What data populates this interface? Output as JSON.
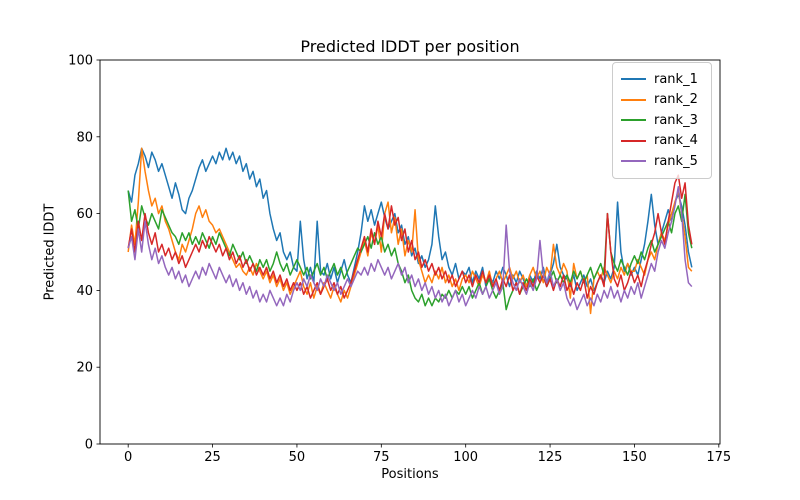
{
  "figure": {
    "background": "#ffffff"
  },
  "chart_data": {
    "type": "line",
    "title": "Predicted lDDT per position",
    "xlabel": "Positions",
    "ylabel": "Predicted lDDT",
    "xlim": [
      -8.35,
      175.35
    ],
    "ylim": [
      0,
      100
    ],
    "xticks": [
      0,
      25,
      50,
      75,
      100,
      125,
      150,
      175
    ],
    "yticks": [
      0,
      20,
      40,
      60,
      80,
      100
    ],
    "grid": false,
    "legend_position": "upper right",
    "x_start": 0,
    "x_step": 1,
    "series": [
      {
        "name": "rank_1",
        "color": "#1f77b4",
        "values": [
          66,
          63,
          70,
          73,
          77,
          75,
          72,
          76,
          74,
          71,
          73,
          70,
          67,
          64,
          68,
          65,
          61,
          60,
          64,
          66,
          69,
          72,
          74,
          71,
          73,
          75,
          73,
          76,
          74,
          77,
          74,
          76,
          73,
          75,
          71,
          73,
          69,
          71,
          67,
          69,
          64,
          66,
          60,
          56,
          53,
          55,
          50,
          48,
          50,
          46,
          45,
          58,
          48,
          43,
          46,
          42,
          58,
          45,
          44,
          47,
          43,
          46,
          42,
          45,
          48,
          44,
          42,
          46,
          50,
          55,
          62,
          58,
          61,
          57,
          60,
          63,
          59,
          56,
          58,
          60,
          55,
          57,
          52,
          54,
          49,
          51,
          47,
          49,
          46,
          48,
          52,
          62,
          54,
          48,
          50,
          46,
          44,
          47,
          43,
          45,
          44,
          46,
          42,
          45,
          43,
          46,
          41,
          44,
          42,
          45,
          43,
          46,
          44,
          41,
          44,
          42,
          45,
          43,
          41,
          44,
          42,
          45,
          43,
          46,
          42,
          44,
          47,
          52,
          46,
          44,
          43,
          41,
          44,
          40,
          42,
          44,
          41,
          43,
          40,
          42,
          44,
          42,
          45,
          43,
          46,
          63,
          50,
          45,
          47,
          44,
          46,
          44,
          48,
          52,
          58,
          65,
          57,
          52,
          55,
          58,
          61,
          58,
          63,
          65,
          62,
          57,
          50,
          46
        ]
      },
      {
        "name": "rank_2",
        "color": "#ff7f0e",
        "values": [
          50,
          57,
          52,
          63,
          77,
          71,
          66,
          62,
          64,
          60,
          62,
          58,
          56,
          53,
          50,
          48,
          52,
          50,
          53,
          56,
          60,
          62,
          59,
          61,
          58,
          57,
          55,
          56,
          54,
          52,
          50,
          48,
          46,
          47,
          45,
          44,
          46,
          44,
          47,
          45,
          43,
          45,
          42,
          44,
          41,
          43,
          40,
          42,
          39,
          41,
          43,
          45,
          41,
          39,
          42,
          38,
          41,
          39,
          42,
          40,
          38,
          41,
          39,
          37,
          40,
          38,
          41,
          44,
          47,
          50,
          53,
          49,
          55,
          52,
          57,
          50,
          60,
          63,
          55,
          59,
          52,
          56,
          49,
          53,
          50,
          61,
          48,
          45,
          42,
          44,
          42,
          45,
          43,
          46,
          42,
          44,
          41,
          43,
          40,
          43,
          44,
          42,
          45,
          43,
          41,
          44,
          42,
          45,
          41,
          43,
          45,
          42,
          44,
          46,
          43,
          45,
          42,
          44,
          41,
          44,
          46,
          43,
          45,
          42,
          46,
          44,
          52,
          46,
          44,
          47,
          45,
          38,
          47,
          43,
          45,
          42,
          44,
          34,
          43,
          45,
          43,
          46,
          44,
          42,
          45,
          43,
          46,
          44,
          47,
          45,
          45,
          48,
          46,
          44,
          48,
          50,
          48,
          52,
          55,
          53,
          57,
          60,
          63,
          66,
          60,
          54,
          46,
          45
        ]
      },
      {
        "name": "rank_3",
        "color": "#2ca02c",
        "values": [
          66,
          58,
          61,
          56,
          62,
          59,
          57,
          60,
          58,
          56,
          61,
          59,
          57,
          55,
          54,
          52,
          55,
          53,
          55,
          52,
          54,
          52,
          55,
          53,
          51,
          54,
          52,
          55,
          53,
          51,
          49,
          52,
          50,
          48,
          50,
          47,
          49,
          47,
          45,
          48,
          46,
          48,
          45,
          47,
          50,
          47,
          45,
          47,
          44,
          46,
          48,
          46,
          44,
          46,
          43,
          45,
          47,
          44,
          46,
          43,
          45,
          47,
          44,
          46,
          43,
          45,
          47,
          49,
          51,
          50,
          52,
          54,
          51,
          55,
          52,
          54,
          50,
          52,
          49,
          51,
          47,
          45,
          42,
          44,
          40,
          38,
          37,
          39,
          36,
          38,
          36,
          38,
          37,
          39,
          38,
          40,
          38,
          40,
          39,
          41,
          39,
          41,
          38,
          40,
          42,
          39,
          41,
          43,
          40,
          38,
          40,
          42,
          35,
          38,
          40,
          42,
          39,
          41,
          43,
          41,
          43,
          40,
          42,
          44,
          41,
          43,
          45,
          42,
          44,
          42,
          44,
          42,
          45,
          43,
          45,
          42,
          44,
          46,
          43,
          45,
          47,
          44,
          60,
          50,
          47,
          45,
          48,
          46,
          44,
          47,
          49,
          47,
          50,
          48,
          51,
          53,
          50,
          52,
          54,
          56,
          58,
          55,
          60,
          62,
          58,
          65,
          55,
          51
        ]
      },
      {
        "name": "rank_4",
        "color": "#d62728",
        "values": [
          51,
          56,
          50,
          58,
          53,
          60,
          55,
          52,
          55,
          50,
          52,
          49,
          51,
          48,
          50,
          47,
          49,
          46,
          48,
          50,
          52,
          50,
          53,
          51,
          54,
          52,
          50,
          52,
          49,
          51,
          48,
          50,
          47,
          49,
          46,
          48,
          45,
          47,
          44,
          46,
          44,
          46,
          43,
          45,
          42,
          44,
          41,
          43,
          40,
          42,
          40,
          42,
          39,
          41,
          38,
          40,
          42,
          39,
          41,
          43,
          40,
          42,
          39,
          41,
          38,
          40,
          42,
          45,
          48,
          51,
          54,
          50,
          56,
          52,
          58,
          54,
          60,
          56,
          62,
          57,
          59,
          53,
          56,
          50,
          53,
          48,
          50,
          46,
          48,
          45,
          47,
          44,
          46,
          43,
          45,
          42,
          44,
          41,
          43,
          45,
          42,
          44,
          41,
          44,
          42,
          45,
          42,
          44,
          41,
          43,
          40,
          43,
          41,
          44,
          40,
          42,
          39,
          42,
          40,
          43,
          41,
          44,
          42,
          44,
          41,
          43,
          40,
          43,
          41,
          44,
          40,
          42,
          39,
          42,
          40,
          43,
          38,
          41,
          39,
          42,
          44,
          41,
          60,
          50,
          43,
          41,
          44,
          40,
          42,
          45,
          42,
          44,
          41,
          45,
          48,
          52,
          55,
          60,
          55,
          52,
          58,
          63,
          68,
          70,
          64,
          68,
          57,
          52
        ]
      },
      {
        "name": "rank_5",
        "color": "#9467bd",
        "values": [
          51,
          54,
          48,
          56,
          50,
          58,
          52,
          48,
          51,
          47,
          49,
          46,
          44,
          46,
          43,
          45,
          42,
          44,
          41,
          43,
          45,
          43,
          46,
          44,
          47,
          45,
          43,
          46,
          44,
          42,
          44,
          41,
          43,
          40,
          42,
          39,
          41,
          38,
          40,
          37,
          39,
          37,
          40,
          38,
          36,
          38,
          36,
          39,
          37,
          40,
          42,
          40,
          43,
          41,
          44,
          42,
          40,
          43,
          41,
          44,
          42,
          40,
          42,
          39,
          41,
          43,
          41,
          43,
          45,
          44,
          46,
          44,
          47,
          45,
          48,
          46,
          44,
          46,
          43,
          45,
          47,
          44,
          46,
          42,
          44,
          41,
          43,
          40,
          42,
          39,
          41,
          38,
          40,
          37,
          39,
          36,
          38,
          40,
          37,
          39,
          36,
          38,
          40,
          38,
          41,
          39,
          41,
          38,
          40,
          42,
          39,
          41,
          57,
          45,
          42,
          40,
          43,
          41,
          39,
          42,
          40,
          43,
          53,
          44,
          42,
          45,
          41,
          43,
          40,
          42,
          38,
          36,
          38,
          35,
          37,
          39,
          36,
          38,
          36,
          39,
          37,
          40,
          38,
          41,
          38,
          40,
          37,
          40,
          38,
          41,
          39,
          42,
          38,
          41,
          44,
          47,
          45,
          50,
          53,
          51,
          55,
          58,
          62,
          67,
          60,
          48,
          42,
          41
        ]
      }
    ]
  }
}
